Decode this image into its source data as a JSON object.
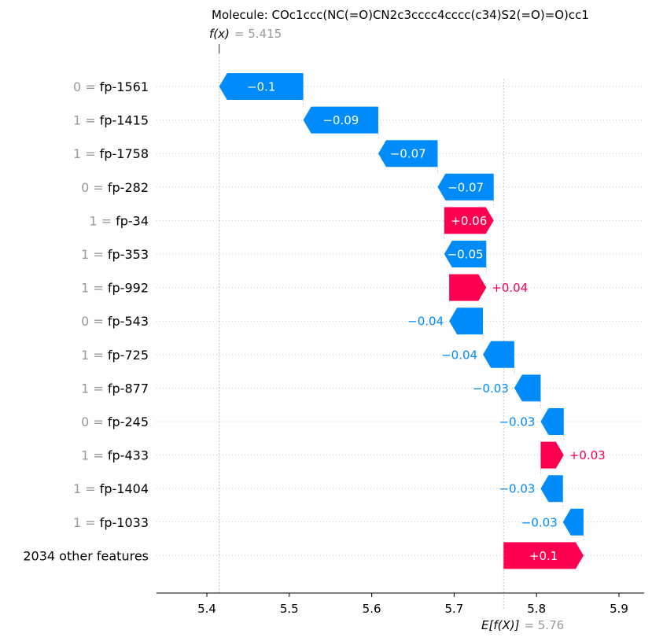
{
  "chart_data": {
    "type": "waterfall",
    "title": "Molecule: COc1ccc(NC(=O)CN2c3cccc4cccc(c34)S2(=O)=O)cc1",
    "fx": {
      "label_prefix": "f(x)",
      "eq": "=",
      "value": 5.415,
      "value_text": "5.415"
    },
    "efx": {
      "label_prefix": "E[f(X)]",
      "eq": "=",
      "value": 5.76,
      "value_text": "5.76"
    },
    "xlim": [
      5.34,
      5.93
    ],
    "xticks": [
      5.4,
      5.5,
      5.6,
      5.7,
      5.8,
      5.9
    ],
    "xtick_labels": [
      "5.4",
      "5.5",
      "5.6",
      "5.7",
      "5.8",
      "5.9"
    ],
    "colors": {
      "positive": "#ff0051",
      "negative": "#008bfb",
      "grid": "#cccccc",
      "muted": "#999999"
    },
    "features": [
      {
        "value": "0",
        "name": "fp-1561",
        "label": "0 = fp-1561",
        "start": 5.517,
        "end": 5.415,
        "shap_text": "−0.1",
        "sign": "neg",
        "label_inside": true
      },
      {
        "value": "1",
        "name": "fp-1415",
        "label": "1 = fp-1415",
        "start": 5.608,
        "end": 5.517,
        "shap_text": "−0.09",
        "sign": "neg",
        "label_inside": true
      },
      {
        "value": "1",
        "name": "fp-1758",
        "label": "1 = fp-1758",
        "start": 5.68,
        "end": 5.608,
        "shap_text": "−0.07",
        "sign": "neg",
        "label_inside": true
      },
      {
        "value": "0",
        "name": "fp-282",
        "label": "0 = fp-282",
        "start": 5.748,
        "end": 5.68,
        "shap_text": "−0.07",
        "sign": "neg",
        "label_inside": true
      },
      {
        "value": "1",
        "name": "fp-34",
        "label": "1 = fp-34",
        "start": 5.688,
        "end": 5.748,
        "shap_text": "+0.06",
        "sign": "pos",
        "label_inside": true
      },
      {
        "value": "1",
        "name": "fp-353",
        "label": "1 = fp-353",
        "start": 5.739,
        "end": 5.688,
        "shap_text": "−0.05",
        "sign": "neg",
        "label_inside": true
      },
      {
        "value": "1",
        "name": "fp-992",
        "label": "1 = fp-992",
        "start": 5.694,
        "end": 5.739,
        "shap_text": "+0.04",
        "sign": "pos",
        "label_inside": false
      },
      {
        "value": "0",
        "name": "fp-543",
        "label": "0 = fp-543",
        "start": 5.735,
        "end": 5.694,
        "shap_text": "−0.04",
        "sign": "neg",
        "label_inside": false
      },
      {
        "value": "1",
        "name": "fp-725",
        "label": "1 = fp-725",
        "start": 5.773,
        "end": 5.735,
        "shap_text": "−0.04",
        "sign": "neg",
        "label_inside": false
      },
      {
        "value": "1",
        "name": "fp-877",
        "label": "1 = fp-877",
        "start": 5.805,
        "end": 5.773,
        "shap_text": "−0.03",
        "sign": "neg",
        "label_inside": false
      },
      {
        "value": "0",
        "name": "fp-245",
        "label": "0 = fp-245",
        "start": 5.833,
        "end": 5.805,
        "shap_text": "−0.03",
        "sign": "neg",
        "label_inside": false
      },
      {
        "value": "1",
        "name": "fp-433",
        "label": "1 = fp-433",
        "start": 5.805,
        "end": 5.833,
        "shap_text": "+0.03",
        "sign": "pos",
        "label_inside": false
      },
      {
        "value": "1",
        "name": "fp-1404",
        "label": "1 = fp-1404",
        "start": 5.832,
        "end": 5.805,
        "shap_text": "−0.03",
        "sign": "neg",
        "label_inside": false
      },
      {
        "value": "1",
        "name": "fp-1033",
        "label": "1 = fp-1033",
        "start": 5.857,
        "end": 5.832,
        "shap_text": "−0.03",
        "sign": "neg",
        "label_inside": false
      },
      {
        "value": "",
        "name": "2034 other features",
        "label": "2034 other features",
        "start": 5.76,
        "end": 5.857,
        "shap_text": "+0.1",
        "sign": "pos",
        "label_inside": true
      }
    ]
  }
}
